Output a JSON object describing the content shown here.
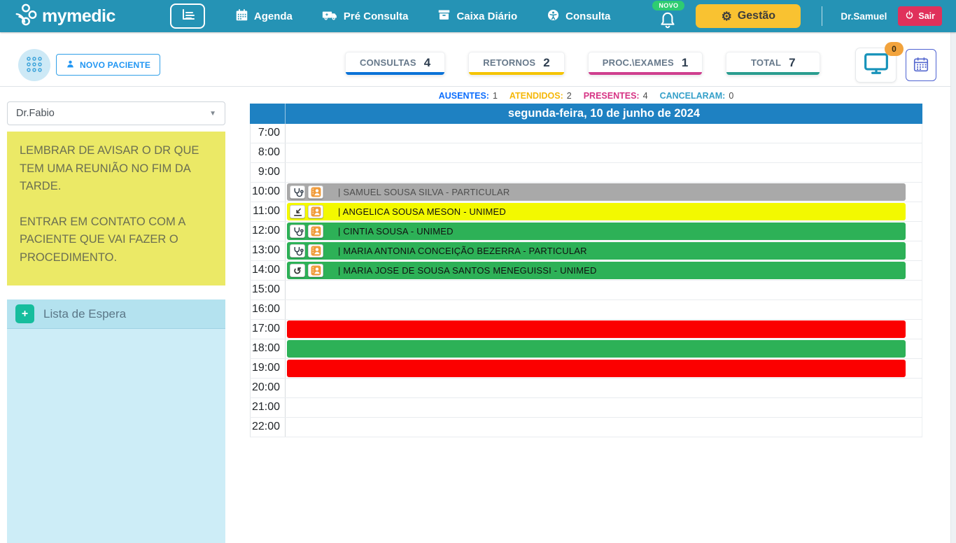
{
  "navbar": {
    "brand": "mymedic",
    "items": [
      {
        "label": "Agenda",
        "icon": "calendar-icon"
      },
      {
        "label": "Pré Consulta",
        "icon": "ambulance-icon"
      },
      {
        "label": "Caixa Diário",
        "icon": "cash-register-icon"
      },
      {
        "label": "Consulta",
        "icon": "universal-access-icon"
      }
    ],
    "notification_badge": "NOVO",
    "gestao_label": "Gestão",
    "user": "Dr.Samuel",
    "logout_label": "Sair"
  },
  "header": {
    "new_patient_label": "NOVO PACIENTE",
    "monitor_badge": "0"
  },
  "stats": {
    "cards": [
      {
        "label": "CONSULTAS",
        "value": "4",
        "color": "#0a72d7"
      },
      {
        "label": "RETORNOS",
        "value": "2",
        "color": "#f5c400"
      },
      {
        "label": "PROC.\\EXAMES",
        "value": "1",
        "color": "#cf3f8e"
      },
      {
        "label": "TOTAL",
        "value": "7",
        "color": "#2a9d8f"
      }
    ]
  },
  "status_counters": [
    {
      "label": "AUSENTES:",
      "value": "1",
      "color": "#0d6efd"
    },
    {
      "label": "ATENDIDOS:",
      "value": "2",
      "color": "#f5b80a"
    },
    {
      "label": "PRESENTES:",
      "value": "4",
      "color": "#d63384"
    },
    {
      "label": "CANCELARAM:",
      "value": "0",
      "color": "#35a0c9"
    }
  ],
  "sidebar": {
    "doctor_select": "Dr.Fabio",
    "note_paragraphs": [
      "LEMBRAR DE AVISAR O DR QUE TEM UMA REUNIÃO NO FIM DA TARDE.",
      "ENTRAR EM CONTATO COM A PACIENTE QUE VAI FAZER O PROCEDIMENTO."
    ],
    "waitlist_title": "Lista de Espera"
  },
  "calendar": {
    "day_header": "segunda-feira, 10 de junho de 2024",
    "times": [
      "7:00",
      "8:00",
      "9:00",
      "10:00",
      "11:00",
      "12:00",
      "13:00",
      "14:00",
      "15:00",
      "16:00",
      "17:00",
      "18:00",
      "19:00",
      "20:00",
      "21:00",
      "22:00"
    ],
    "appointments": [
      {
        "time": "10:00",
        "label": "| SAMUEL SOUSA SILVA - PARTICULAR",
        "color": "#a9a9a9",
        "text_color": "#4e4e4e",
        "type_icon": "stethoscope-icon",
        "patient_icon": "contact-card-icon"
      },
      {
        "time": "11:00",
        "label": "| ANGELICA SOUSA MESON - UNIMED",
        "color": "#f3f900",
        "text_color": "#101010",
        "type_icon": "procedure-icon",
        "patient_icon": "contact-card-icon"
      },
      {
        "time": "12:00",
        "label": "| CINTIA SOUSA - UNIMED",
        "color": "#2db157",
        "text_color": "#101010",
        "type_icon": "stethoscope-icon",
        "patient_icon": "contact-card-icon"
      },
      {
        "time": "13:00",
        "label": "| MARIA ANTONIA CONCEIÇÃO BEZERRA - PARTICULAR",
        "color": "#2db157",
        "text_color": "#101010",
        "type_icon": "stethoscope-icon",
        "patient_icon": "contact-card-icon"
      },
      {
        "time": "14:00",
        "label": "| MARIA JOSE DE SOUSA SANTOS MENEGUISSI - UNIMED",
        "color": "#2db157",
        "text_color": "#101010",
        "type_icon": "return-icon",
        "patient_icon": "contact-card-icon"
      }
    ],
    "blocks": [
      {
        "time": "17:00",
        "color": "#fb0000"
      },
      {
        "time": "18:00",
        "color": "#2db157"
      },
      {
        "time": "19:00",
        "color": "#fb0000"
      }
    ]
  }
}
